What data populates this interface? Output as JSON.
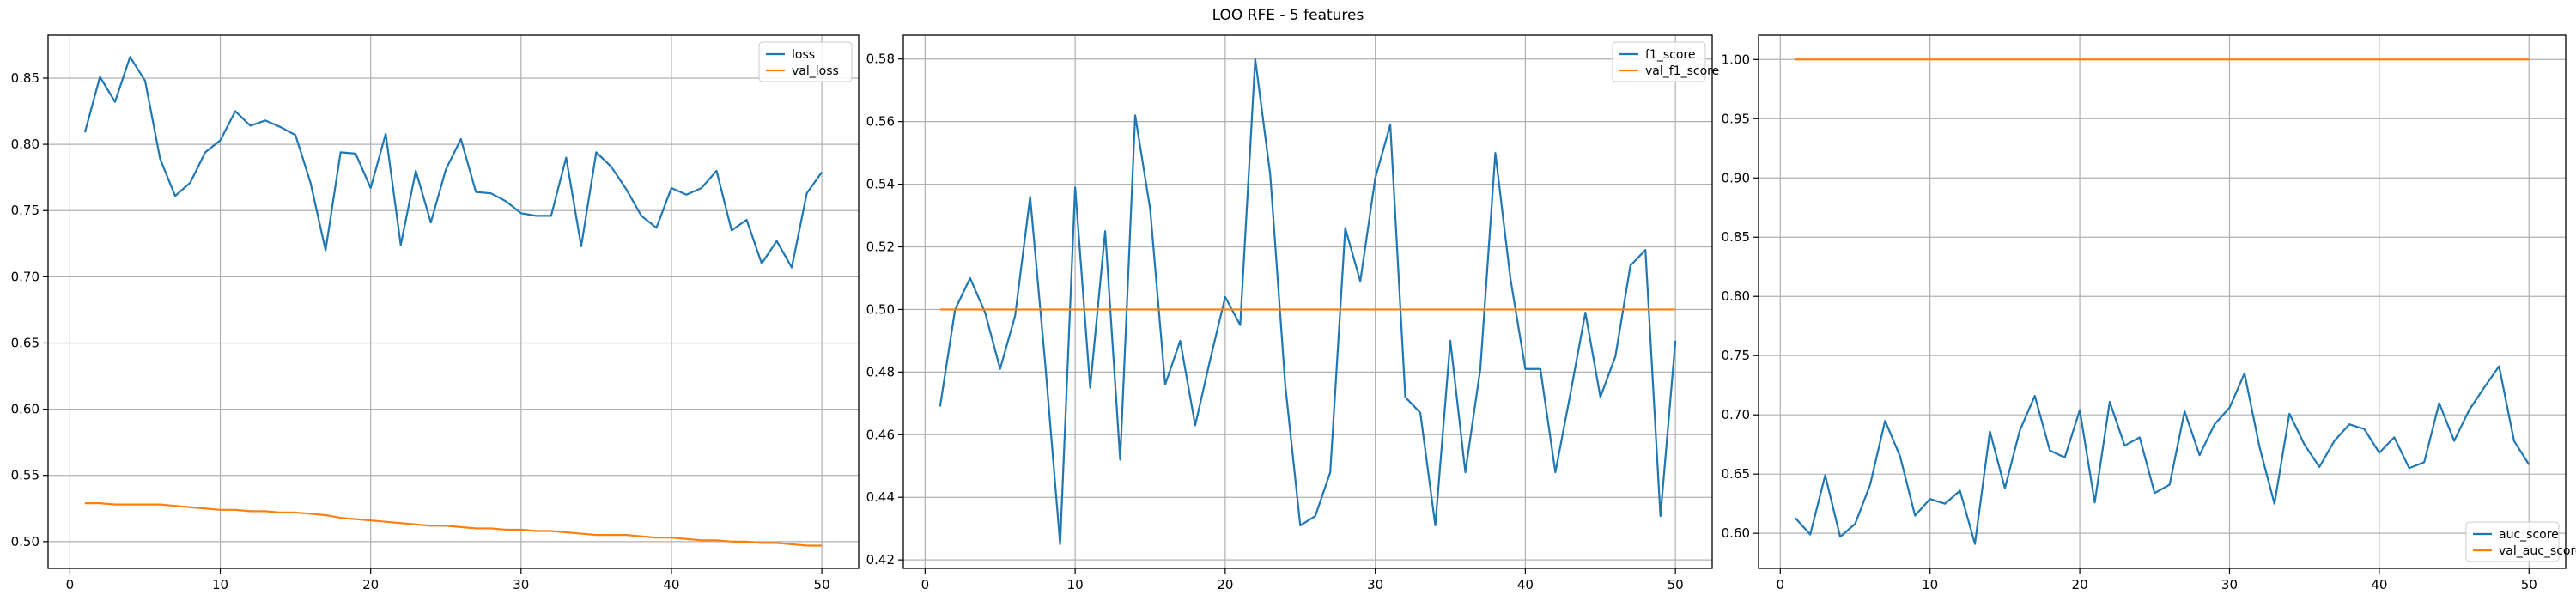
{
  "figure": {
    "title": "LOO RFE - 5 features"
  },
  "colors": {
    "train": "#1f77b4",
    "val": "#ff7f0e",
    "grid": "#b0b0b0",
    "axes": "#000000"
  },
  "chart_data": [
    {
      "type": "line",
      "xlim": [
        -1.45,
        52.45
      ],
      "ylim": [
        0.4798,
        0.8824
      ],
      "xticks": [
        0,
        10,
        20,
        30,
        40,
        50
      ],
      "yticks": [
        0.5,
        0.55,
        0.6,
        0.65,
        0.7,
        0.75,
        0.8,
        0.85
      ],
      "ytick_labels": [
        "0.50",
        "0.55",
        "0.60",
        "0.65",
        "0.70",
        "0.75",
        "0.80",
        "0.85"
      ],
      "grid": true,
      "legend_position": "top-right",
      "x": [
        1,
        2,
        3,
        4,
        5,
        6,
        7,
        8,
        9,
        10,
        11,
        12,
        13,
        14,
        15,
        16,
        17,
        18,
        19,
        20,
        21,
        22,
        23,
        24,
        25,
        26,
        27,
        28,
        29,
        30,
        31,
        32,
        33,
        34,
        35,
        36,
        37,
        38,
        39,
        40,
        41,
        42,
        43,
        44,
        45,
        46,
        47,
        48,
        49,
        50
      ],
      "series": [
        {
          "name": "loss",
          "color": "train",
          "values": [
            0.809,
            0.851,
            0.832,
            0.866,
            0.848,
            0.789,
            0.761,
            0.771,
            0.794,
            0.803,
            0.825,
            0.814,
            0.818,
            0.813,
            0.807,
            0.771,
            0.72,
            0.794,
            0.793,
            0.767,
            0.808,
            0.724,
            0.78,
            0.741,
            0.781,
            0.804,
            0.764,
            0.763,
            0.757,
            0.748,
            0.746,
            0.746,
            0.79,
            0.723,
            0.794,
            0.783,
            0.766,
            0.746,
            0.737,
            0.767,
            0.762,
            0.767,
            0.78,
            0.735,
            0.743,
            0.71,
            0.727,
            0.707,
            0.763,
            0.779
          ]
        },
        {
          "name": "val_loss",
          "color": "val",
          "values": [
            0.529,
            0.529,
            0.528,
            0.528,
            0.528,
            0.528,
            0.527,
            0.526,
            0.525,
            0.524,
            0.524,
            0.523,
            0.523,
            0.522,
            0.522,
            0.521,
            0.52,
            0.518,
            0.517,
            0.516,
            0.515,
            0.514,
            0.513,
            0.512,
            0.512,
            0.511,
            0.51,
            0.51,
            0.509,
            0.509,
            0.508,
            0.508,
            0.507,
            0.506,
            0.505,
            0.505,
            0.505,
            0.504,
            0.503,
            0.503,
            0.502,
            0.501,
            0.501,
            0.5,
            0.5,
            0.499,
            0.499,
            0.498,
            0.497,
            0.497
          ]
        }
      ]
    },
    {
      "type": "line",
      "xlim": [
        -1.45,
        52.45
      ],
      "ylim": [
        0.4173,
        0.5876
      ],
      "xticks": [
        0,
        10,
        20,
        30,
        40,
        50
      ],
      "yticks": [
        0.42,
        0.44,
        0.46,
        0.48,
        0.5,
        0.52,
        0.54,
        0.56,
        0.58
      ],
      "ytick_labels": [
        "0.42",
        "0.44",
        "0.46",
        "0.48",
        "0.50",
        "0.52",
        "0.54",
        "0.56",
        "0.58"
      ],
      "grid": true,
      "legend_position": "top-right",
      "x": [
        1,
        2,
        3,
        4,
        5,
        6,
        7,
        8,
        9,
        10,
        11,
        12,
        13,
        14,
        15,
        16,
        17,
        18,
        19,
        20,
        21,
        22,
        23,
        24,
        25,
        26,
        27,
        28,
        29,
        30,
        31,
        32,
        33,
        34,
        35,
        36,
        37,
        38,
        39,
        40,
        41,
        42,
        43,
        44,
        45,
        46,
        47,
        48,
        49,
        50
      ],
      "series": [
        {
          "name": "f1_score",
          "color": "train",
          "values": [
            0.469,
            0.5,
            0.51,
            0.499,
            0.481,
            0.498,
            0.536,
            0.483,
            0.425,
            0.539,
            0.475,
            0.525,
            0.452,
            0.562,
            0.532,
            0.476,
            0.49,
            0.463,
            0.484,
            0.504,
            0.495,
            0.58,
            0.543,
            0.476,
            0.431,
            0.434,
            0.448,
            0.526,
            0.509,
            0.542,
            0.559,
            0.472,
            0.467,
            0.431,
            0.49,
            0.448,
            0.481,
            0.55,
            0.51,
            0.481,
            0.481,
            0.448,
            0.473,
            0.499,
            0.472,
            0.485,
            0.514,
            0.519,
            0.434,
            0.49
          ]
        },
        {
          "name": "val_f1_score",
          "color": "val",
          "values": [
            0.5,
            0.5,
            0.5,
            0.5,
            0.5,
            0.5,
            0.5,
            0.5,
            0.5,
            0.5,
            0.5,
            0.5,
            0.5,
            0.5,
            0.5,
            0.5,
            0.5,
            0.5,
            0.5,
            0.5,
            0.5,
            0.5,
            0.5,
            0.5,
            0.5,
            0.5,
            0.5,
            0.5,
            0.5,
            0.5,
            0.5,
            0.5,
            0.5,
            0.5,
            0.5,
            0.5,
            0.5,
            0.5,
            0.5,
            0.5,
            0.5,
            0.5,
            0.5,
            0.5,
            0.5,
            0.5,
            0.5,
            0.5,
            0.5,
            0.5
          ]
        }
      ]
    },
    {
      "type": "line",
      "xlim": [
        -1.45,
        52.45
      ],
      "ylim": [
        0.5704,
        1.0205
      ],
      "xticks": [
        0,
        10,
        20,
        30,
        40,
        50
      ],
      "yticks": [
        0.6,
        0.65,
        0.7,
        0.75,
        0.8,
        0.85,
        0.9,
        0.95,
        1.0
      ],
      "ytick_labels": [
        "0.60",
        "0.65",
        "0.70",
        "0.75",
        "0.80",
        "0.85",
        "0.90",
        "0.95",
        "1.00"
      ],
      "grid": true,
      "legend_position": "bottom-right",
      "x": [
        1,
        2,
        3,
        4,
        5,
        6,
        7,
        8,
        9,
        10,
        11,
        12,
        13,
        14,
        15,
        16,
        17,
        18,
        19,
        20,
        21,
        22,
        23,
        24,
        25,
        26,
        27,
        28,
        29,
        30,
        31,
        32,
        33,
        34,
        35,
        36,
        37,
        38,
        39,
        40,
        41,
        42,
        43,
        44,
        45,
        46,
        47,
        48,
        49,
        50
      ],
      "series": [
        {
          "name": "auc_score",
          "color": "train",
          "values": [
            0.613,
            0.599,
            0.649,
            0.597,
            0.608,
            0.641,
            0.695,
            0.665,
            0.615,
            0.629,
            0.625,
            0.636,
            0.591,
            0.686,
            0.638,
            0.687,
            0.716,
            0.67,
            0.664,
            0.704,
            0.626,
            0.711,
            0.674,
            0.681,
            0.634,
            0.641,
            0.703,
            0.666,
            0.692,
            0.706,
            0.735,
            0.673,
            0.625,
            0.701,
            0.675,
            0.656,
            0.678,
            0.692,
            0.688,
            0.668,
            0.681,
            0.655,
            0.66,
            0.71,
            0.678,
            0.704,
            0.723,
            0.741,
            0.678,
            0.658
          ]
        },
        {
          "name": "val_auc_score",
          "color": "val",
          "values": [
            1.0,
            1.0,
            1.0,
            1.0,
            1.0,
            1.0,
            1.0,
            1.0,
            1.0,
            1.0,
            1.0,
            1.0,
            1.0,
            1.0,
            1.0,
            1.0,
            1.0,
            1.0,
            1.0,
            1.0,
            1.0,
            1.0,
            1.0,
            1.0,
            1.0,
            1.0,
            1.0,
            1.0,
            1.0,
            1.0,
            1.0,
            1.0,
            1.0,
            1.0,
            1.0,
            1.0,
            1.0,
            1.0,
            1.0,
            1.0,
            1.0,
            1.0,
            1.0,
            1.0,
            1.0,
            1.0,
            1.0,
            1.0,
            1.0,
            1.0
          ]
        }
      ]
    }
  ]
}
